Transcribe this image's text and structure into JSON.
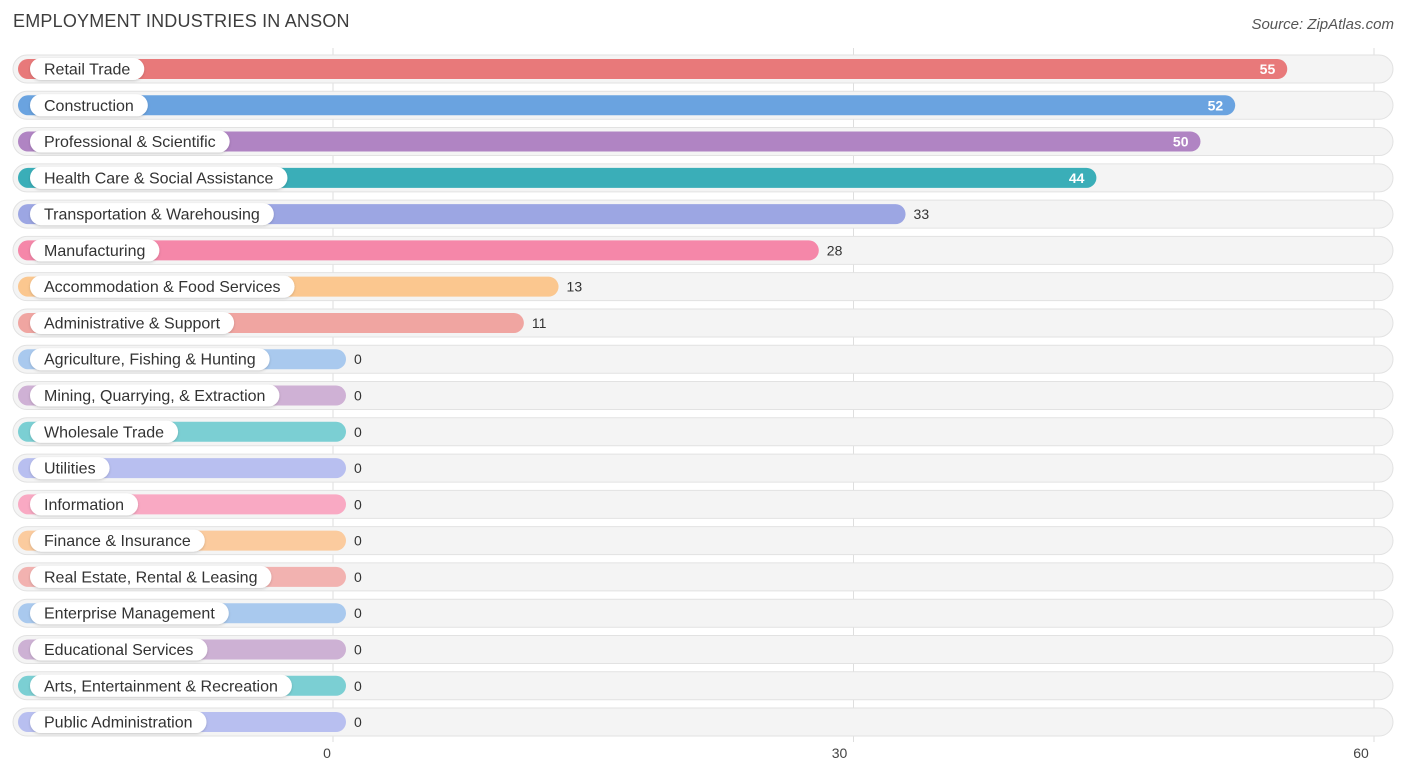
{
  "header": {
    "title": "EMPLOYMENT INDUSTRIES IN ANSON",
    "source": "Source: ZipAtlas.com"
  },
  "chart_data": {
    "type": "bar",
    "orientation": "horizontal",
    "title": "EMPLOYMENT INDUSTRIES IN ANSON",
    "xlim": [
      0,
      60
    ],
    "xticks": [
      0,
      30,
      60
    ],
    "grid": true,
    "categories": [
      "Retail Trade",
      "Construction",
      "Professional & Scientific",
      "Health Care & Social Assistance",
      "Transportation & Warehousing",
      "Manufacturing",
      "Accommodation & Food Services",
      "Administrative & Support",
      "Agriculture, Fishing & Hunting",
      "Mining, Quarrying, & Extraction",
      "Wholesale Trade",
      "Utilities",
      "Information",
      "Finance & Insurance",
      "Real Estate, Rental & Leasing",
      "Enterprise Management",
      "Educational Services",
      "Arts, Entertainment & Recreation",
      "Public Administration"
    ],
    "values": [
      55,
      52,
      50,
      44,
      33,
      28,
      13,
      11,
      0,
      0,
      0,
      0,
      0,
      0,
      0,
      0,
      0,
      0,
      0
    ],
    "colors": [
      "#e8797a",
      "#6aa3e0",
      "#b084c3",
      "#3aaeb8",
      "#9ca6e3",
      "#f587a9",
      "#fbc78f",
      "#f0a5a1",
      "#a9c9ee",
      "#cfb1d5",
      "#7bcfd3",
      "#b8bff0",
      "#f9a9c3",
      "#fbcb9e",
      "#f2b2b0",
      "#a9c9ee",
      "#cdb1d4",
      "#7bcfd3",
      "#b8bff0"
    ]
  }
}
